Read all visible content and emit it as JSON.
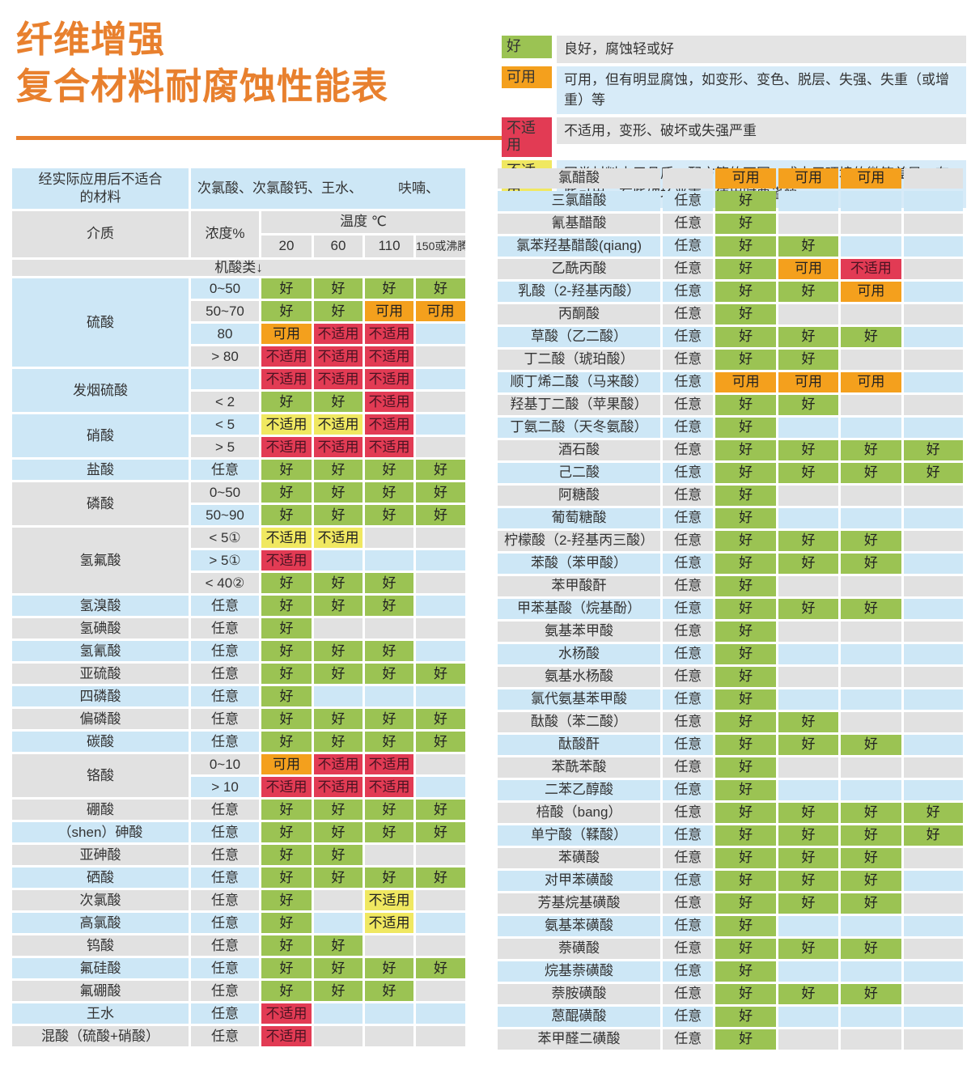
{
  "title": {
    "line1": "纤维增强",
    "line2": "复合材料耐腐蚀性能表"
  },
  "colors": {
    "accent": "#e8802e",
    "text": "#333333",
    "good": "#9bc353",
    "usable": "#f4a01d",
    "unusable": "#e23b54",
    "caution": "#f0e861",
    "row_blue": "#cde7f6",
    "row_gray": "#e1e1e1",
    "legend_desc_blue": "#d7ebf8",
    "legend_desc_gray": "#e4e4e4"
  },
  "cell_types": {
    "g": {
      "label": "好",
      "color": "#9bc353"
    },
    "u": {
      "label": "可用",
      "color": "#f4a01d"
    },
    "n": {
      "label": "不适用",
      "color": "#e23b54"
    },
    "c": {
      "label": "不适用",
      "color": "#f0e861"
    }
  },
  "legend": {
    "rows": [
      {
        "type": "g",
        "label": "好",
        "desc": "良好，腐蚀轻或好"
      },
      {
        "type": "u",
        "label": "可用",
        "desc": "可用，但有明显腐蚀，如变形、变色、脱层、失强、失重（或增重）等"
      },
      {
        "type": "n",
        "label": "不适用",
        "desc": "不适用，变形、破坏或失强严重"
      },
      {
        "type": "c",
        "label": "不适用",
        "desc": "同类材料由于品质、配方等的不同，或由于环境的微笑差异，有些可用，有些破坏严重，使用时要谨慎"
      }
    ]
  },
  "left_table": {
    "header": {
      "unsuitable_title": "经实际应用后不适合\n的材料",
      "unsuitable_items": "次氯酸、次氯酸钙、王水、",
      "unsuitable_items2": "呋喃、",
      "medium_label": "介质",
      "concentration_label": "浓度%",
      "temperature_label": "温度 ℃",
      "temps": [
        "20",
        "60",
        "110",
        "150或沸腾"
      ],
      "category_label": "机酸类↓"
    },
    "groups": [
      {
        "name": "硫酸",
        "rows": [
          {
            "conc": "0~50",
            "vals": [
              "g",
              "g",
              "g",
              "g"
            ]
          },
          {
            "conc": "50~70",
            "vals": [
              "g",
              "g",
              "u",
              "u"
            ]
          },
          {
            "conc": "80",
            "vals": [
              "u",
              "n",
              "n",
              ""
            ]
          },
          {
            "conc": "> 80",
            "vals": [
              "n",
              "n",
              "n",
              ""
            ]
          }
        ]
      },
      {
        "name": "发烟硫酸",
        "rows": [
          {
            "conc": "",
            "vals": [
              "n",
              "n",
              "n",
              ""
            ]
          },
          {
            "conc": "< 2",
            "vals": [
              "g",
              "g",
              "n",
              ""
            ]
          }
        ]
      },
      {
        "name": "硝酸",
        "rows": [
          {
            "conc": "< 5",
            "vals": [
              "c",
              "c",
              "n",
              ""
            ]
          },
          {
            "conc": "> 5",
            "vals": [
              "n",
              "n",
              "n",
              ""
            ]
          }
        ]
      },
      {
        "name": "盐酸",
        "rows": [
          {
            "conc": "任意",
            "vals": [
              "g",
              "g",
              "g",
              "g"
            ]
          }
        ]
      },
      {
        "name": "磷酸",
        "rows": [
          {
            "conc": "0~50",
            "vals": [
              "g",
              "g",
              "g",
              "g"
            ]
          },
          {
            "conc": "50~90",
            "vals": [
              "g",
              "g",
              "g",
              "g"
            ]
          }
        ]
      },
      {
        "name": "氢氟酸",
        "rows": [
          {
            "conc": "< 5①",
            "vals": [
              "c",
              "c",
              "",
              ""
            ]
          },
          {
            "conc": "> 5①",
            "vals": [
              "n",
              "",
              "",
              ""
            ]
          },
          {
            "conc": "< 40②",
            "vals": [
              "g",
              "g",
              "g",
              ""
            ]
          }
        ]
      },
      {
        "name": "氢溴酸",
        "rows": [
          {
            "conc": "任意",
            "vals": [
              "g",
              "g",
              "g",
              ""
            ]
          }
        ]
      },
      {
        "name": "氢碘酸",
        "rows": [
          {
            "conc": "任意",
            "vals": [
              "g",
              "",
              "",
              ""
            ]
          }
        ]
      },
      {
        "name": "氢氰酸",
        "rows": [
          {
            "conc": "任意",
            "vals": [
              "g",
              "g",
              "g",
              ""
            ]
          }
        ]
      },
      {
        "name": "亚硫酸",
        "rows": [
          {
            "conc": "任意",
            "vals": [
              "g",
              "g",
              "g",
              "g"
            ]
          }
        ]
      },
      {
        "name": "四磷酸",
        "rows": [
          {
            "conc": "任意",
            "vals": [
              "g",
              "",
              "",
              ""
            ]
          }
        ]
      },
      {
        "name": "偏磷酸",
        "rows": [
          {
            "conc": "任意",
            "vals": [
              "g",
              "g",
              "g",
              "g"
            ]
          }
        ]
      },
      {
        "name": "碳酸",
        "rows": [
          {
            "conc": "任意",
            "vals": [
              "g",
              "g",
              "g",
              "g"
            ]
          }
        ]
      },
      {
        "name": "铬酸",
        "rows": [
          {
            "conc": "0~10",
            "vals": [
              "u",
              "n",
              "n",
              ""
            ]
          },
          {
            "conc": "> 10",
            "vals": [
              "n",
              "n",
              "n",
              ""
            ]
          }
        ]
      },
      {
        "name": "硼酸",
        "rows": [
          {
            "conc": "任意",
            "vals": [
              "g",
              "g",
              "g",
              "g"
            ]
          }
        ]
      },
      {
        "name": "（shen）砷酸",
        "rows": [
          {
            "conc": "任意",
            "vals": [
              "g",
              "g",
              "g",
              "g"
            ]
          }
        ]
      },
      {
        "name": "亚砷酸",
        "rows": [
          {
            "conc": "任意",
            "vals": [
              "g",
              "g",
              "",
              ""
            ]
          }
        ]
      },
      {
        "name": "硒酸",
        "rows": [
          {
            "conc": "任意",
            "vals": [
              "g",
              "g",
              "g",
              "g"
            ]
          }
        ]
      },
      {
        "name": "次氯酸",
        "rows": [
          {
            "conc": "任意",
            "vals": [
              "g",
              "",
              "c",
              ""
            ]
          }
        ]
      },
      {
        "name": "高氯酸",
        "rows": [
          {
            "conc": "任意",
            "vals": [
              "g",
              "",
              "c",
              ""
            ]
          }
        ]
      },
      {
        "name": "钨酸",
        "rows": [
          {
            "conc": "任意",
            "vals": [
              "g",
              "g",
              "",
              ""
            ]
          }
        ]
      },
      {
        "name": "氟硅酸",
        "rows": [
          {
            "conc": "任意",
            "vals": [
              "g",
              "g",
              "g",
              "g"
            ]
          }
        ]
      },
      {
        "name": "氟硼酸",
        "rows": [
          {
            "conc": "任意",
            "vals": [
              "g",
              "g",
              "g",
              ""
            ]
          }
        ]
      },
      {
        "name": "王水",
        "rows": [
          {
            "conc": "任意",
            "vals": [
              "n",
              "",
              "",
              ""
            ]
          }
        ]
      },
      {
        "name": "混酸（硫酸+硝酸）",
        "rows": [
          {
            "conc": "任意",
            "vals": [
              "n",
              "",
              "",
              ""
            ]
          }
        ]
      }
    ]
  },
  "right_table": {
    "rows": [
      {
        "name": "氯醋酸",
        "conc": "",
        "vals": [
          "u",
          "u",
          "u",
          ""
        ]
      },
      {
        "name": "三氯醋酸",
        "conc": "任意",
        "vals": [
          "g",
          "",
          "",
          ""
        ]
      },
      {
        "name": "氰基醋酸",
        "conc": "任意",
        "vals": [
          "g",
          "",
          "",
          ""
        ]
      },
      {
        "name": "氯苯羟基醋酸(qiang)",
        "conc": "任意",
        "vals": [
          "g",
          "g",
          "",
          ""
        ]
      },
      {
        "name": "乙酰丙酸",
        "conc": "任意",
        "vals": [
          "g",
          "u",
          "n",
          ""
        ]
      },
      {
        "name": "乳酸（2-羟基丙酸）",
        "conc": "任意",
        "vals": [
          "g",
          "g",
          "u",
          ""
        ]
      },
      {
        "name": "丙酮酸",
        "conc": "任意",
        "vals": [
          "g",
          "",
          "",
          ""
        ]
      },
      {
        "name": "草酸（乙二酸）",
        "conc": "任意",
        "vals": [
          "g",
          "g",
          "g",
          ""
        ]
      },
      {
        "name": "丁二酸（琥珀酸）",
        "conc": "任意",
        "vals": [
          "g",
          "g",
          "",
          ""
        ]
      },
      {
        "name": "顺丁烯二酸（马来酸）",
        "conc": "任意",
        "vals": [
          "u",
          "u",
          "u",
          ""
        ]
      },
      {
        "name": "羟基丁二酸（苹果酸）",
        "conc": "任意",
        "vals": [
          "g",
          "g",
          "",
          ""
        ]
      },
      {
        "name": "丁氨二酸（天冬氨酸）",
        "conc": "任意",
        "vals": [
          "g",
          "",
          "",
          ""
        ]
      },
      {
        "name": "酒石酸",
        "conc": "任意",
        "vals": [
          "g",
          "g",
          "g",
          "g"
        ]
      },
      {
        "name": "己二酸",
        "conc": "任意",
        "vals": [
          "g",
          "g",
          "g",
          "g"
        ]
      },
      {
        "name": "阿糖酸",
        "conc": "任意",
        "vals": [
          "g",
          "",
          "",
          ""
        ]
      },
      {
        "name": "葡萄糖酸",
        "conc": "任意",
        "vals": [
          "g",
          "",
          "",
          ""
        ]
      },
      {
        "name": "柠檬酸（2-羟基丙三酸）",
        "conc": "任意",
        "vals": [
          "g",
          "g",
          "g",
          ""
        ]
      },
      {
        "name": "苯酸（苯甲酸）",
        "conc": "任意",
        "vals": [
          "g",
          "g",
          "g",
          ""
        ]
      },
      {
        "name": "苯甲酸酐",
        "conc": "任意",
        "vals": [
          "g",
          "",
          "",
          ""
        ]
      },
      {
        "name": "甲苯基酸（烷基酚）",
        "conc": "任意",
        "vals": [
          "g",
          "g",
          "g",
          ""
        ]
      },
      {
        "name": "氨基苯甲酸",
        "conc": "任意",
        "vals": [
          "g",
          "",
          "",
          ""
        ]
      },
      {
        "name": "水杨酸",
        "conc": "任意",
        "vals": [
          "g",
          "",
          "",
          ""
        ]
      },
      {
        "name": "氨基水杨酸",
        "conc": "任意",
        "vals": [
          "g",
          "",
          "",
          ""
        ]
      },
      {
        "name": "氯代氨基苯甲酸",
        "conc": "任意",
        "vals": [
          "g",
          "",
          "",
          ""
        ]
      },
      {
        "name": "酞酸（苯二酸）",
        "conc": "任意",
        "vals": [
          "g",
          "g",
          "",
          ""
        ]
      },
      {
        "name": "酞酸酐",
        "conc": "任意",
        "vals": [
          "g",
          "g",
          "g",
          ""
        ]
      },
      {
        "name": "苯酰苯酸",
        "conc": "任意",
        "vals": [
          "g",
          "",
          "",
          ""
        ]
      },
      {
        "name": "二苯乙醇酸",
        "conc": "任意",
        "vals": [
          "g",
          "",
          "",
          ""
        ]
      },
      {
        "name": "棓酸（bang）",
        "conc": "任意",
        "vals": [
          "g",
          "g",
          "g",
          "g"
        ]
      },
      {
        "name": "单宁酸（鞣酸）",
        "conc": "任意",
        "vals": [
          "g",
          "g",
          "g",
          "g"
        ]
      },
      {
        "name": "苯磺酸",
        "conc": "任意",
        "vals": [
          "g",
          "g",
          "g",
          ""
        ]
      },
      {
        "name": "对甲苯磺酸",
        "conc": "任意",
        "vals": [
          "g",
          "g",
          "g",
          ""
        ]
      },
      {
        "name": "芳基烷基磺酸",
        "conc": "任意",
        "vals": [
          "g",
          "g",
          "g",
          ""
        ]
      },
      {
        "name": "氨基苯磺酸",
        "conc": "任意",
        "vals": [
          "g",
          "",
          "",
          ""
        ]
      },
      {
        "name": "萘磺酸",
        "conc": "任意",
        "vals": [
          "g",
          "g",
          "g",
          ""
        ]
      },
      {
        "name": "烷基萘磺酸",
        "conc": "任意",
        "vals": [
          "g",
          "",
          "",
          ""
        ]
      },
      {
        "name": "萘胺磺酸",
        "conc": "任意",
        "vals": [
          "g",
          "g",
          "g",
          ""
        ]
      },
      {
        "name": "蒽醌磺酸",
        "conc": "任意",
        "vals": [
          "g",
          "",
          "",
          ""
        ]
      },
      {
        "name": "苯甲醛二磺酸",
        "conc": "任意",
        "vals": [
          "g",
          "",
          "",
          ""
        ]
      }
    ]
  }
}
